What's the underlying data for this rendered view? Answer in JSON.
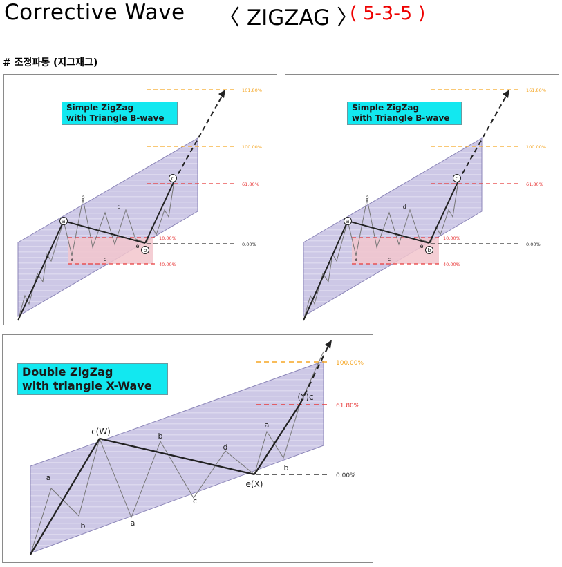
{
  "header": {
    "title": "Corrective  Wave",
    "pattern": "〈 ZIGZAG 〉",
    "ratio": "( 5-3-5 )",
    "subtitle": "# 조정파동 (지그재그)"
  },
  "colors": {
    "channel_fill": "#cdc8e6",
    "channel_stroke": "#8c86b8",
    "fib_orange": "#f5a623",
    "fib_red": "#e83a3a",
    "zero_line": "#333333",
    "label_bg": "#12e8f0",
    "title_red": "#ee0000",
    "triangle_zone": "#f2c6cc"
  },
  "panels": [
    {
      "label_line1": "Simple ZigZag",
      "label_line2": "with Triangle B-wave",
      "levels": [
        "161.80%",
        "100.00%",
        "61.80%",
        "10.00%",
        "0.00%",
        "40.00%"
      ],
      "wave_labels": [
        "a",
        "b",
        "a",
        "c",
        "d",
        "e",
        "b",
        "c"
      ]
    },
    {
      "label_line1": "Simple ZigZag",
      "label_line2": "with Triangle B-wave",
      "levels": [
        "161.80%",
        "100.00%",
        "61.80%",
        "10.00%",
        "0.00%",
        "40.00%"
      ],
      "wave_labels": [
        "a",
        "b",
        "a",
        "c",
        "d",
        "e",
        "b",
        "c"
      ]
    }
  ],
  "panel_large": {
    "label_line1": "Double ZigZag",
    "label_line2": "with triangle X-Wave",
    "levels": [
      "100.00%",
      "61.80%",
      "0.00%"
    ],
    "wave_labels": {
      "cw": "c(W)",
      "a1": "a",
      "b1": "b",
      "b2": "b",
      "a2": "a",
      "c2": "c",
      "d2": "d",
      "ex": "e(X)",
      "a3": "a",
      "b3": "b",
      "yc": "(Y)c"
    }
  }
}
